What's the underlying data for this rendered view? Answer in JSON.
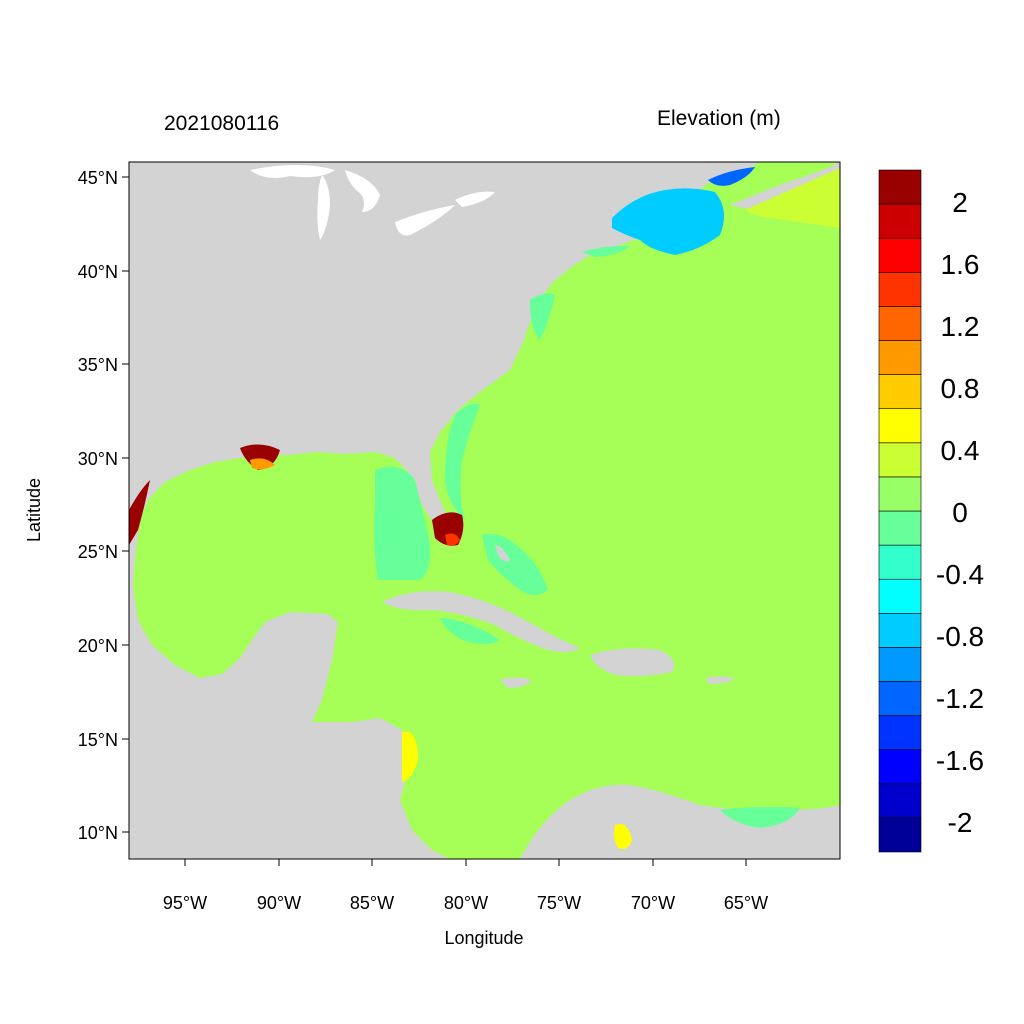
{
  "map": {
    "title_left": "2021080116",
    "title_right": "Elevation (m)",
    "xlabel": "Longitude",
    "ylabel": "Latitude",
    "x_ticks": [
      "95°W",
      "90°W",
      "85°W",
      "80°W",
      "75°W",
      "70°W",
      "65°W"
    ],
    "y_ticks": [
      "45°N",
      "40°N",
      "35°N",
      "30°N",
      "25°N",
      "20°N",
      "15°N",
      "10°N"
    ],
    "lon_range": [
      -98,
      -60
    ],
    "lat_range": [
      8.5,
      46
    ]
  },
  "colorbar": {
    "labels": [
      "2",
      "1.6",
      "1.2",
      "0.8",
      "0.4",
      "0",
      "-0.4",
      "-0.8",
      "-1.2",
      "-1.6",
      "-2"
    ],
    "colors": [
      "#000099",
      "#0000cc",
      "#0000ff",
      "#0033ff",
      "#0066ff",
      "#0099ff",
      "#00ccff",
      "#00ffff",
      "#33ffcc",
      "#66ff99",
      "#99ff66",
      "#ccff33",
      "#ffff00",
      "#ffcc00",
      "#ff9900",
      "#ff6600",
      "#ff3300",
      "#ff0000",
      "#cc0000",
      "#990000"
    ]
  },
  "colors": {
    "land": "#d3d3d3",
    "water_zero": "#a5ff57",
    "water_neg_small": "#66ff99",
    "water_pos_small": "#ccff33"
  }
}
